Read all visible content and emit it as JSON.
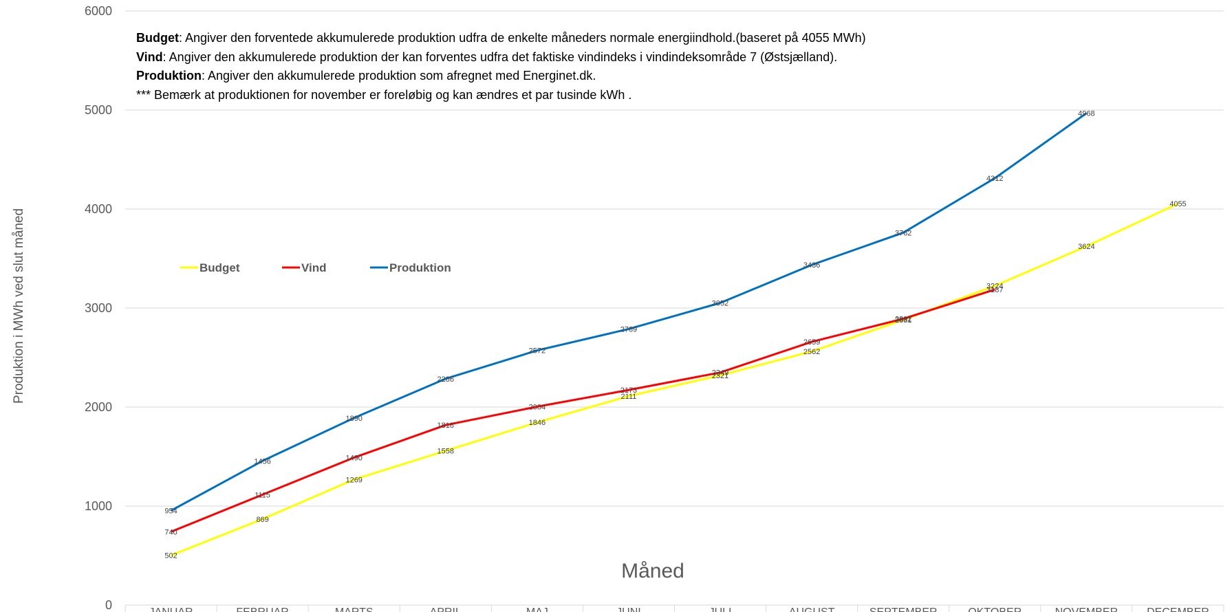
{
  "notes": [
    {
      "term": "Budget",
      "text": ": Angiver den forventede akkumulerede produktion udfra de enkelte måneders normale energiindhold.(baseret på 4055 MWh)"
    },
    {
      "term": "Vind",
      "text": ": Angiver den akkumulerede produktion der kan forventes udfra det faktiske vindindeks i vindindeksområde 7 (Østsjælland)."
    },
    {
      "term": "Produktion",
      "text": ": Angiver den akkumulerede produktion som afregnet med Energinet.dk."
    },
    {
      "term": "",
      "text": "*** Bemærk at produktionen for november er foreløbig og kan ændres et par tusinde kWh ."
    }
  ],
  "chart_data": {
    "type": "line",
    "xlabel": "Måned",
    "ylabel": "Produktion i MWh ved slut måned",
    "ylim": [
      0,
      6000
    ],
    "yticks": [
      0,
      1000,
      2000,
      3000,
      4000,
      5000,
      6000
    ],
    "grid": true,
    "legend_position": "upper-left",
    "categories": [
      "JANUAR",
      "FEBRUAR",
      "MARTS",
      "APRIL",
      "MAJ",
      "JUNI",
      "JULI",
      "AUGUST",
      "SEPTEMBER",
      "OKTOBER",
      "NOVEMBER",
      "DECEMBER"
    ],
    "series": [
      {
        "name": "Budget",
        "color": "#FFFF00",
        "values": [
          502,
          869,
          1269,
          1558,
          1846,
          2111,
          2321,
          2562,
          2881,
          3224,
          3624,
          4055
        ]
      },
      {
        "name": "Vind",
        "color": "#FF0000",
        "values": [
          740,
          1115,
          1490,
          1818,
          2004,
          2173,
          2349,
          2659,
          2892,
          3187,
          null,
          null
        ]
      },
      {
        "name": "Produktion",
        "color": "#0070C0",
        "values": [
          954,
          1456,
          1890,
          2286,
          2572,
          2789,
          3052,
          3436,
          3762,
          4312,
          4968,
          null
        ]
      }
    ]
  }
}
